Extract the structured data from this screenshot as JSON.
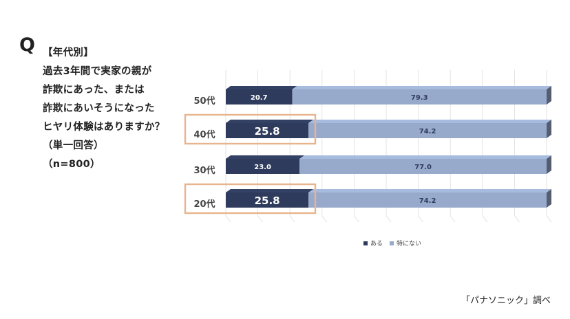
{
  "question": {
    "q_mark": "Q",
    "lines": [
      "【年代別】",
      "過去3年間で実家の親が",
      "詐欺にあった、または",
      "詐欺にあいそうになった",
      "ヒヤリ体験はありますか？",
      "（単一回答）",
      "（n=800）"
    ]
  },
  "source": "「パナソニック」調べ",
  "colors": {
    "aru": "#2e3b5c",
    "tokuninai": "#98aacb",
    "highlight": "#e8b48e"
  },
  "chart_data": {
    "type": "bar",
    "orientation": "horizontal",
    "stacked": true,
    "percent": true,
    "categories": [
      "50代",
      "40代",
      "30代",
      "20代"
    ],
    "series": [
      {
        "name": "ある",
        "values": [
          20.7,
          25.8,
          23.0,
          25.8
        ]
      },
      {
        "name": "特にない",
        "values": [
          79.3,
          74.2,
          77.0,
          74.2
        ]
      }
    ],
    "highlighted_categories": [
      "40代",
      "20代"
    ],
    "xlim": [
      0,
      100
    ],
    "grid": true,
    "legend": "bottom",
    "title": "",
    "xlabel": "",
    "ylabel": ""
  }
}
